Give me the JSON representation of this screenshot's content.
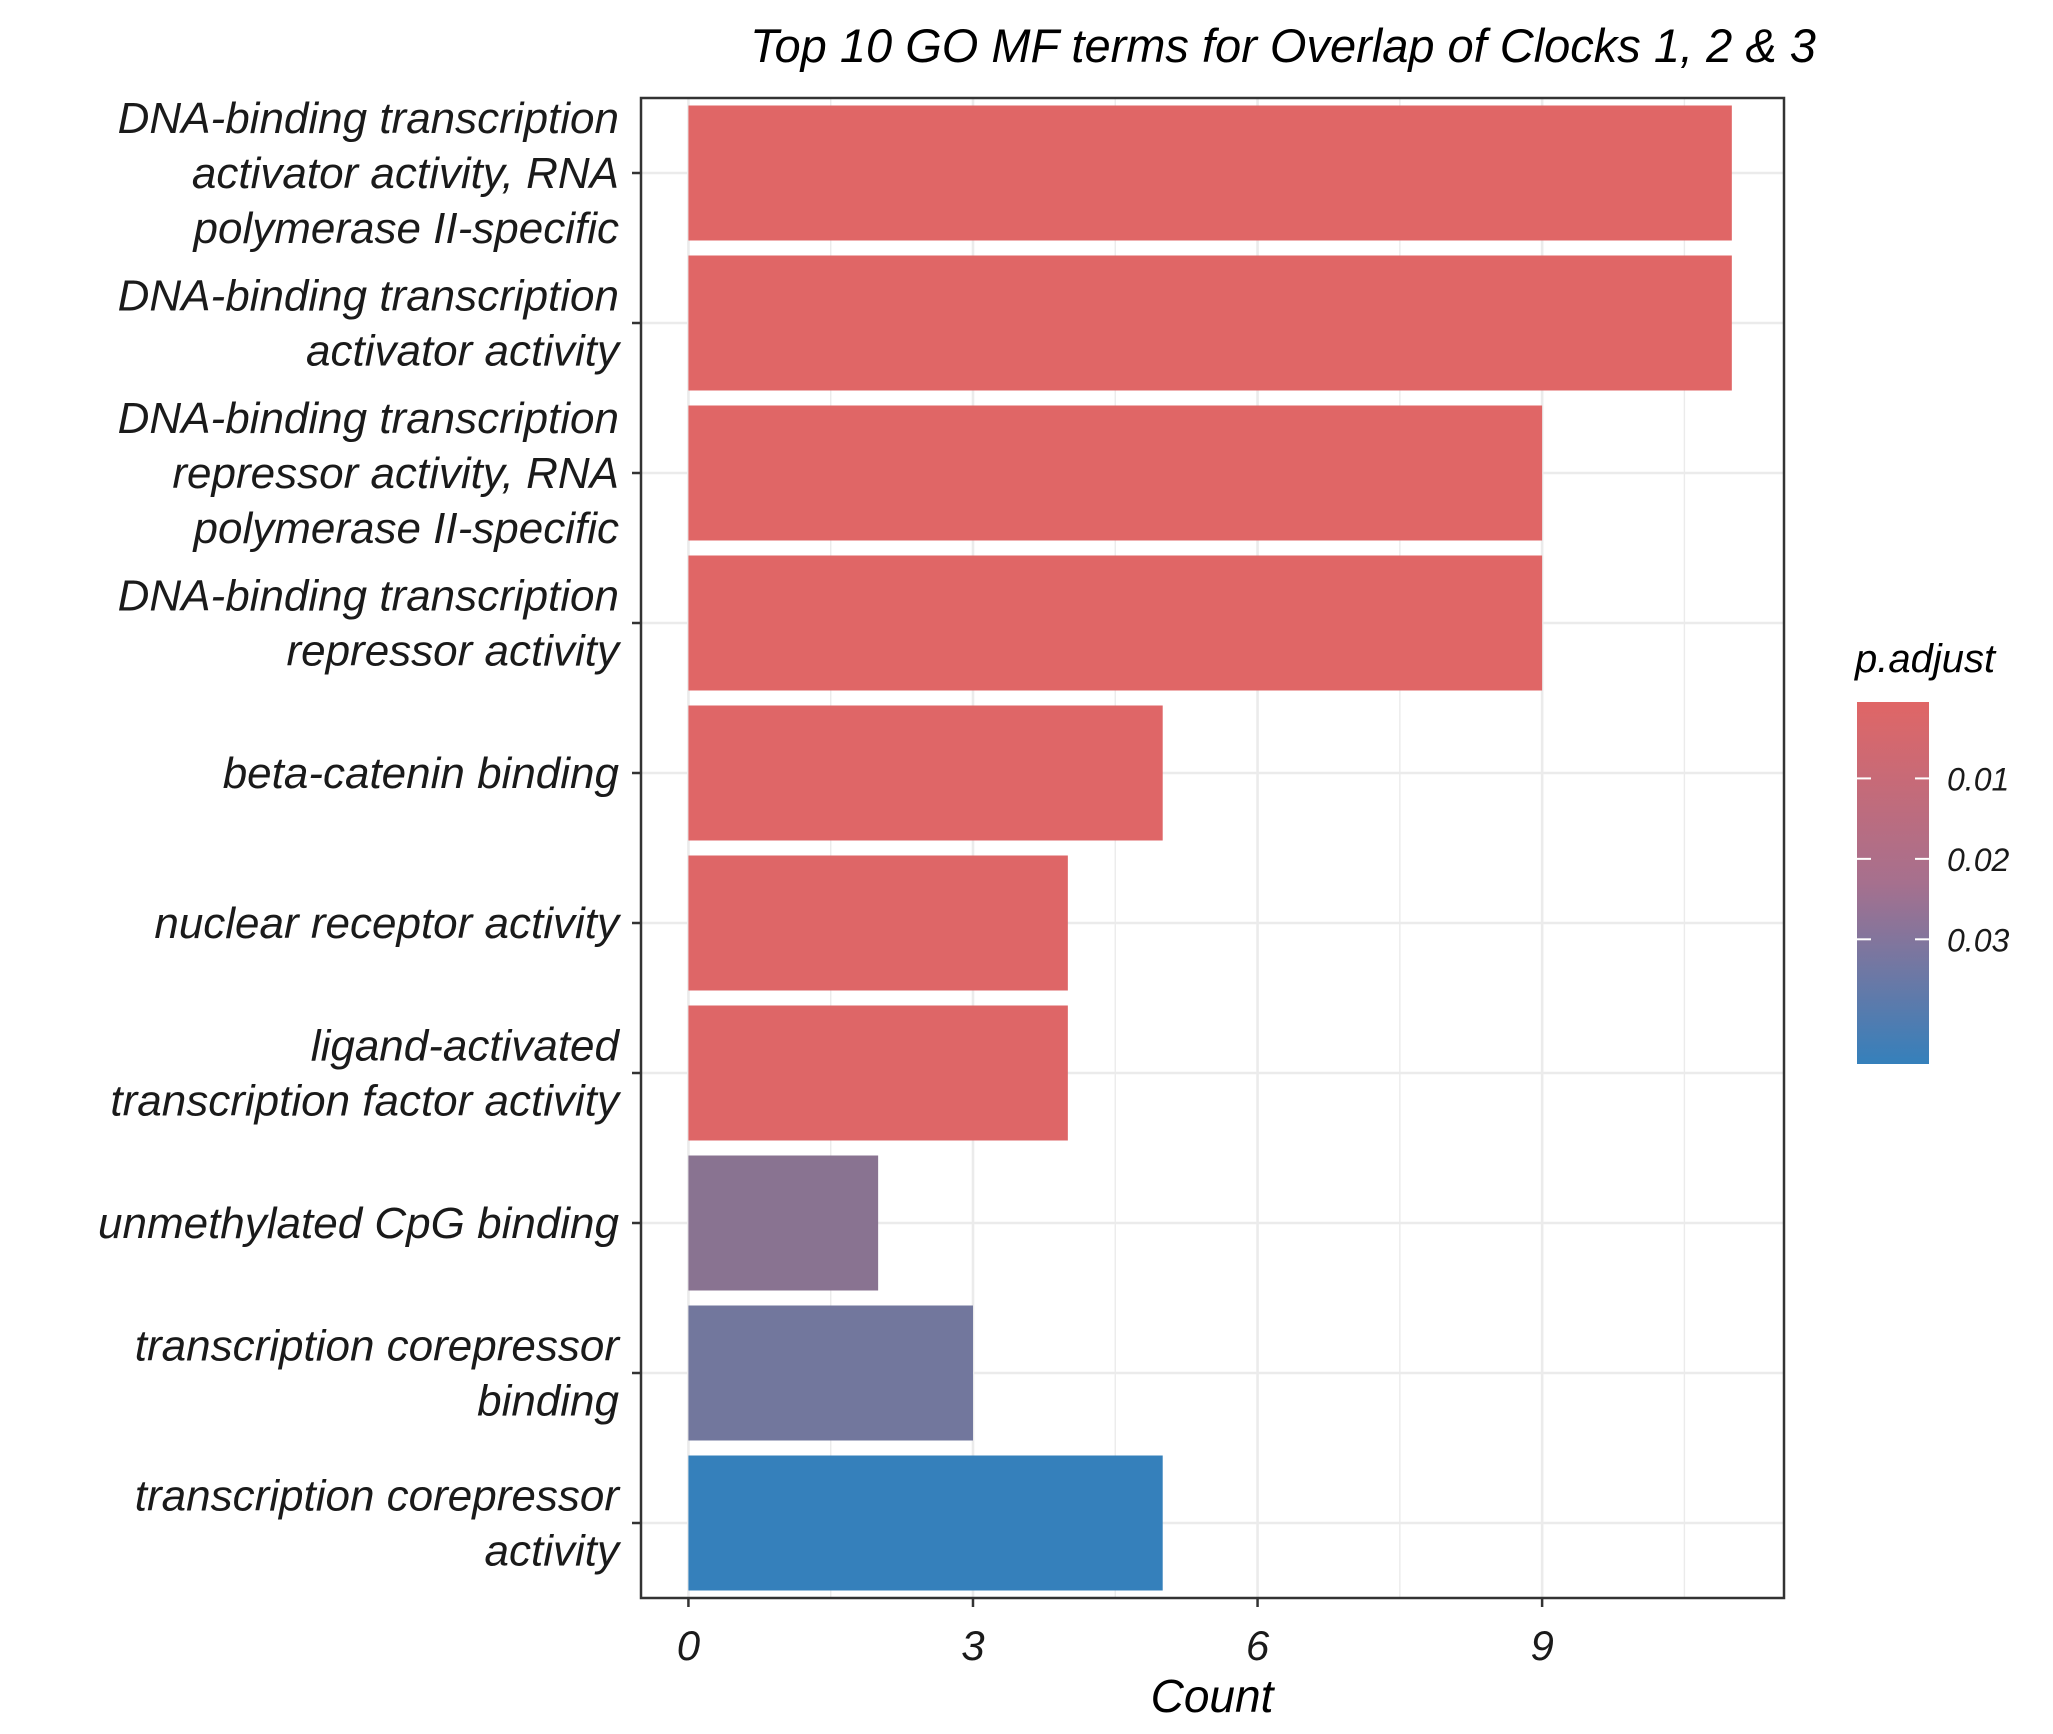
{
  "chart_data": {
    "type": "bar",
    "orientation": "horizontal",
    "title": "Top 10 GO MF terms for Overlap of Clocks 1, 2 & 3",
    "xlabel": "Count",
    "ylabel": "",
    "xlim": [
      -0.5,
      11.55
    ],
    "xticks": [
      0,
      3,
      6,
      9
    ],
    "grid": true,
    "legend_position": "right",
    "categories": [
      [
        "DNA-binding transcription",
        "activator activity, RNA",
        "polymerase II-specific"
      ],
      [
        "DNA-binding transcription",
        "activator activity"
      ],
      [
        "DNA-binding transcription",
        "repressor activity, RNA",
        "polymerase II-specific"
      ],
      [
        "DNA-binding transcription",
        "repressor activity"
      ],
      [
        "beta-catenin binding"
      ],
      [
        "nuclear receptor activity"
      ],
      [
        "ligand-activated",
        "transcription factor activity"
      ],
      [
        "unmethylated CpG binding"
      ],
      [
        "transcription corepressor",
        "binding"
      ],
      [
        "transcription corepressor",
        "activity"
      ]
    ],
    "values": [
      11,
      11,
      9,
      9,
      5,
      4,
      4,
      2,
      3,
      5
    ],
    "p_adjust": [
      0.0005,
      0.0005,
      0.0006,
      0.0006,
      0.0008,
      0.001,
      0.001,
      0.0235,
      0.0295,
      0.0455
    ],
    "legend": {
      "title": "p.adjust",
      "min": 0.0005,
      "max": 0.0455,
      "ticks": [
        0.01,
        0.02,
        0.03
      ],
      "tick_labels": [
        "0.01",
        "0.02",
        "0.03"
      ],
      "color_low_value": "#e06666",
      "color_high_value": "#3580bb",
      "reverse": true
    },
    "colors": {
      "grid": "#ebebeb",
      "panel_border": "#333333",
      "text": "#1a1a1a"
    }
  }
}
